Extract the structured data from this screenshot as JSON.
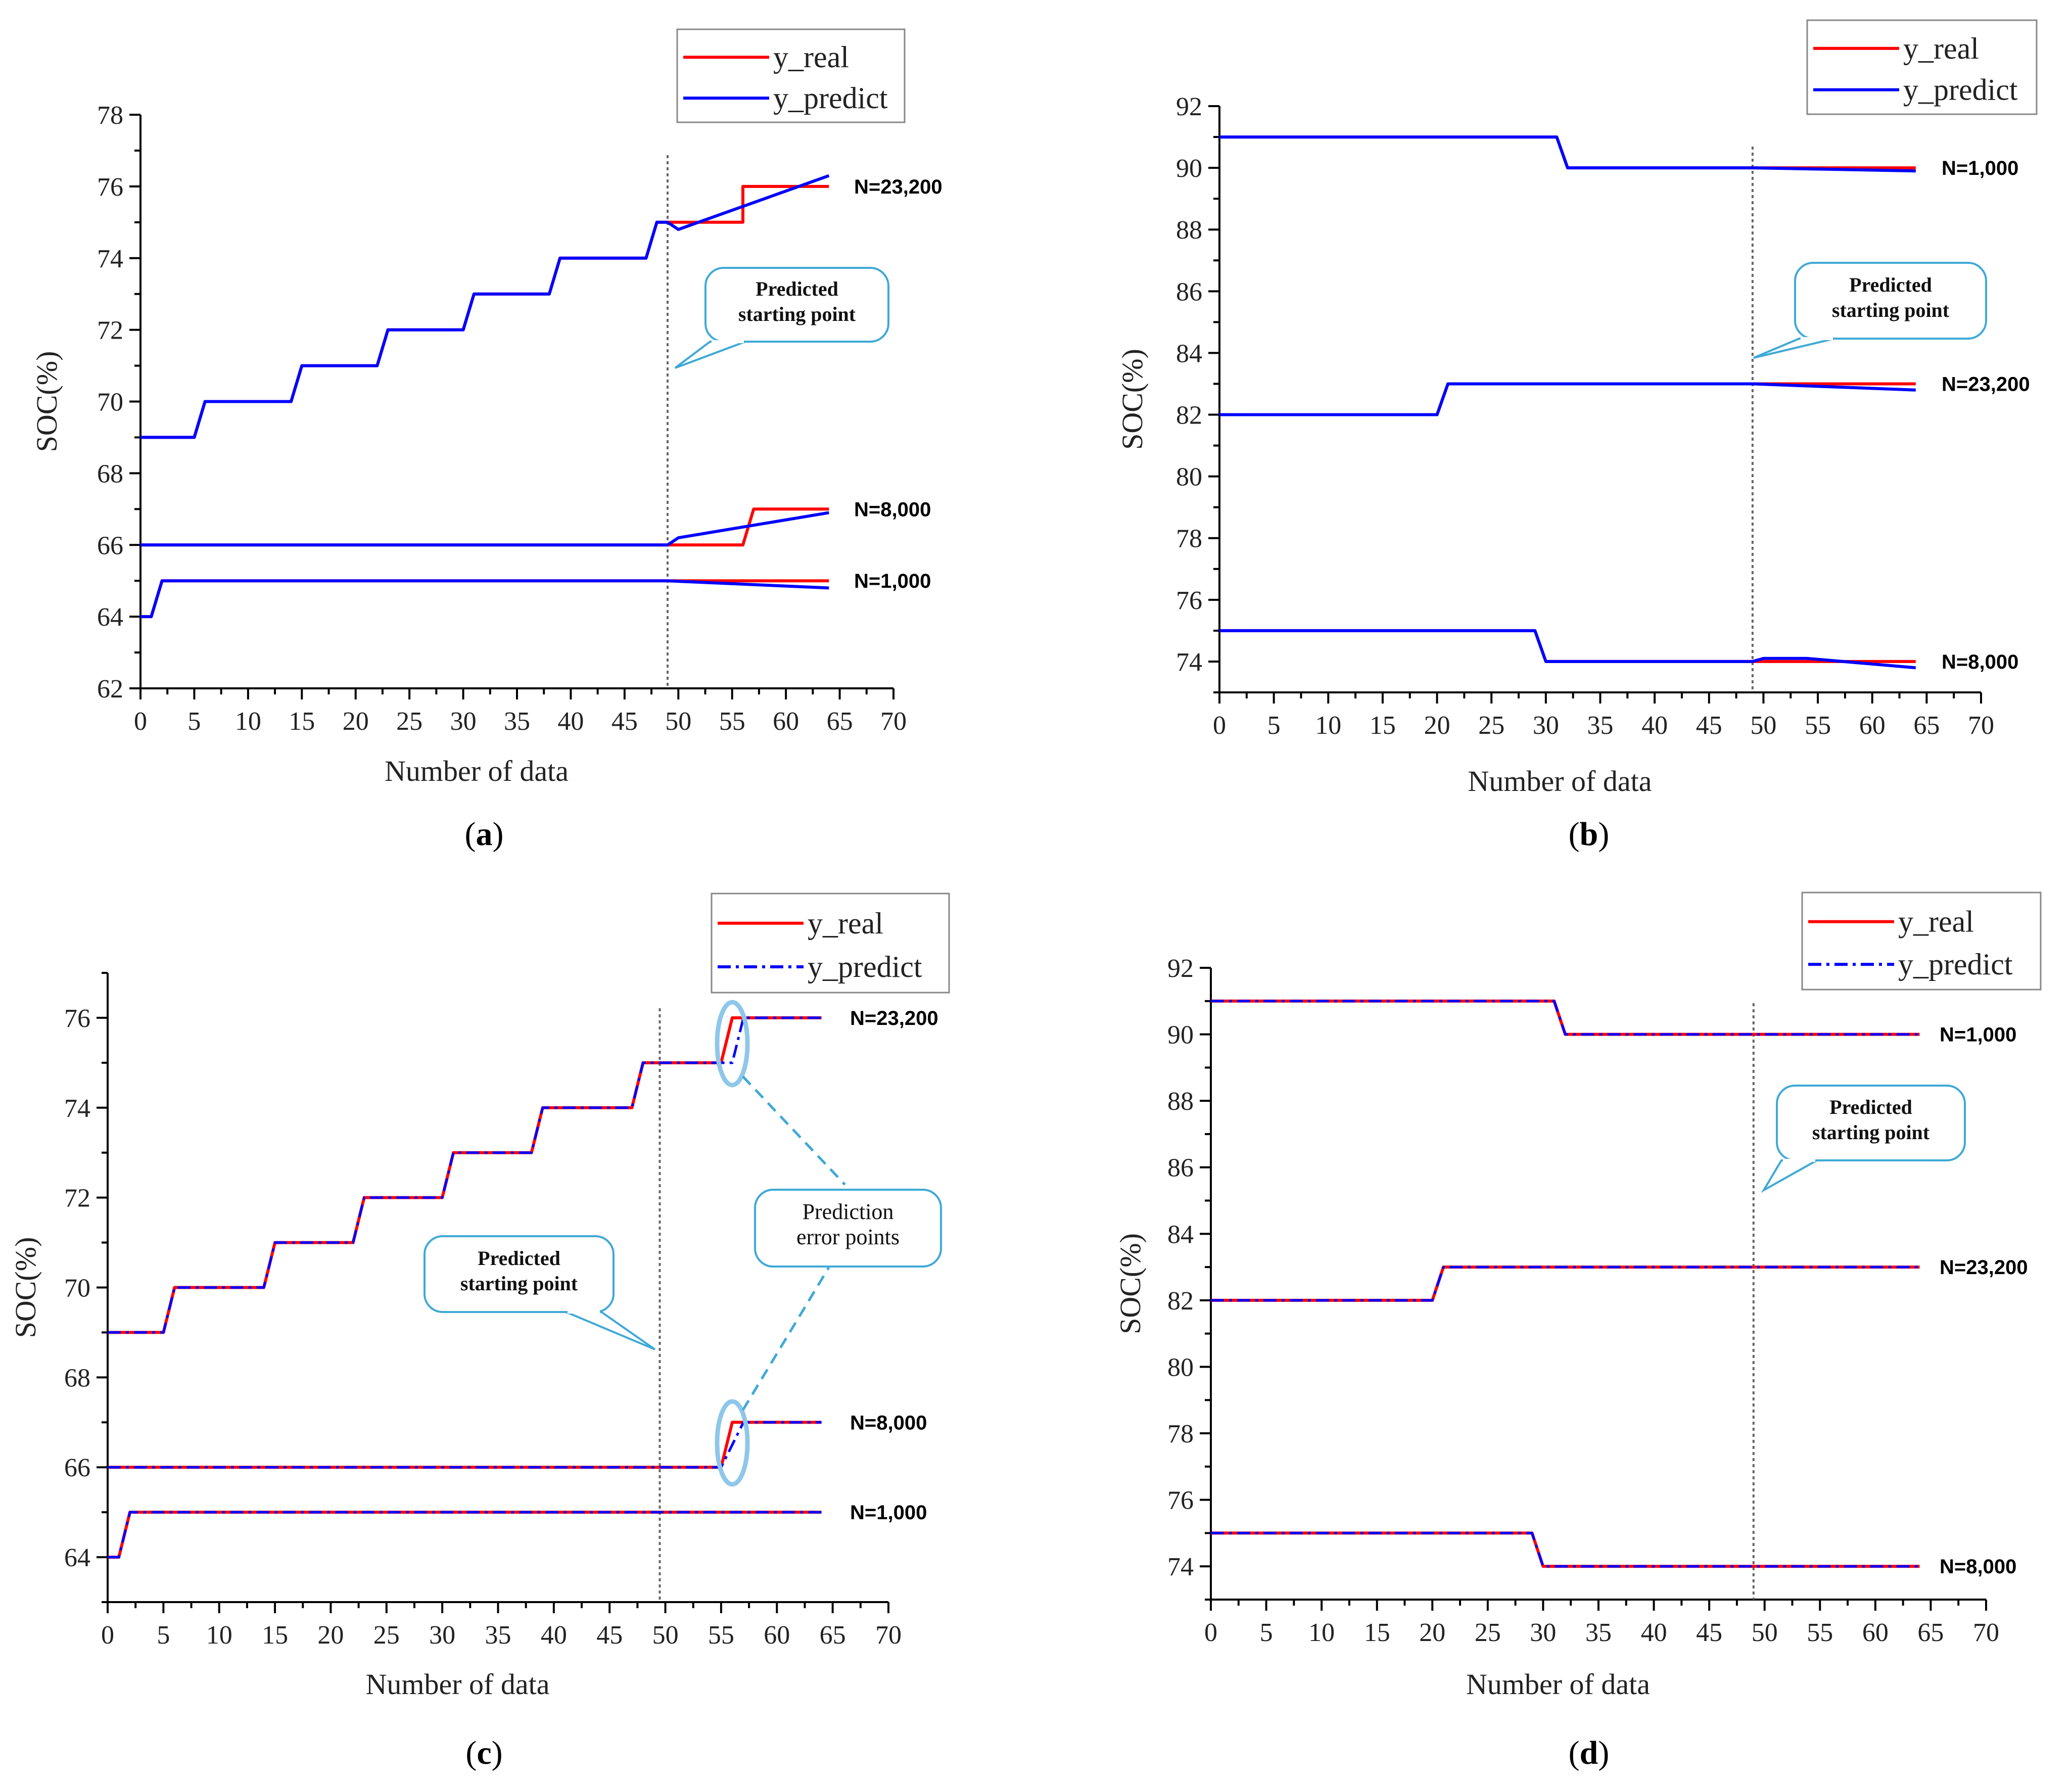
{
  "colors": {
    "real": "#ff0000",
    "predict": "#0000ff",
    "callout": "#3fa9d6"
  },
  "chart_data": [
    {
      "panel": "(a)",
      "panel_letter": "a",
      "type": "line",
      "xlabel": "Number of data",
      "ylabel": "SOC(%)",
      "xlim": [
        0,
        70
      ],
      "ylim": [
        62,
        78
      ],
      "yticks": [
        62,
        64,
        66,
        68,
        70,
        72,
        74,
        76,
        78
      ],
      "xticks": [
        0,
        5,
        10,
        15,
        20,
        25,
        30,
        35,
        40,
        45,
        50,
        55,
        60,
        65,
        70
      ],
      "predict_style": "solid",
      "legend_pos": "top-right",
      "legend": [
        "y_real",
        "y_predict"
      ],
      "start_x": 49,
      "series": [
        {
          "label": "N=23,200",
          "real": [
            [
              0,
              69
            ],
            [
              5,
              69
            ],
            [
              6,
              70
            ],
            [
              14,
              70
            ],
            [
              15,
              71
            ],
            [
              22,
              71
            ],
            [
              23,
              72
            ],
            [
              30,
              72
            ],
            [
              31,
              73
            ],
            [
              38,
              73
            ],
            [
              39,
              74
            ],
            [
              47,
              74
            ],
            [
              48,
              75
            ],
            [
              56,
              75
            ],
            [
              56,
              76
            ],
            [
              64,
              76
            ]
          ],
          "predict": [
            [
              0,
              69
            ],
            [
              5,
              69
            ],
            [
              6,
              70
            ],
            [
              14,
              70
            ],
            [
              15,
              71
            ],
            [
              22,
              71
            ],
            [
              23,
              72
            ],
            [
              30,
              72
            ],
            [
              31,
              73
            ],
            [
              38,
              73
            ],
            [
              39,
              74
            ],
            [
              47,
              74
            ],
            [
              48,
              75
            ],
            [
              49,
              75
            ],
            [
              50,
              74.8
            ],
            [
              64,
              76.3
            ]
          ]
        },
        {
          "label": "N=8,000",
          "real": [
            [
              0,
              66
            ],
            [
              49,
              66
            ],
            [
              49,
              66
            ],
            [
              56,
              66
            ],
            [
              57,
              67
            ],
            [
              64,
              67
            ]
          ],
          "predict": [
            [
              0,
              66
            ],
            [
              49,
              66
            ],
            [
              50,
              66.2
            ],
            [
              64,
              66.9
            ]
          ]
        },
        {
          "label": "N=1,000",
          "real": [
            [
              0,
              64
            ],
            [
              1,
              64
            ],
            [
              2,
              65
            ],
            [
              49,
              65
            ],
            [
              64,
              65
            ]
          ],
          "predict": [
            [
              0,
              64
            ],
            [
              1,
              64
            ],
            [
              2,
              65
            ],
            [
              49,
              65
            ],
            [
              64,
              64.8
            ]
          ]
        }
      ],
      "callouts": [
        {
          "lines": [
            "Predicted",
            "starting point"
          ]
        }
      ]
    },
    {
      "panel": "(b)",
      "panel_letter": "b",
      "type": "line",
      "xlabel": "Number of data",
      "ylabel": "SOC(%)",
      "xlim": [
        0,
        70
      ],
      "ylim": [
        73,
        92
      ],
      "yticks": [
        74,
        76,
        78,
        80,
        82,
        84,
        86,
        88,
        90,
        92
      ],
      "xticks": [
        0,
        5,
        10,
        15,
        20,
        25,
        30,
        35,
        40,
        45,
        50,
        55,
        60,
        65,
        70
      ],
      "predict_style": "solid",
      "legend_pos": "top-right",
      "legend": [
        "y_real",
        "y_predict"
      ],
      "start_x": 49,
      "series": [
        {
          "label": "N=1,000",
          "real": [
            [
              0,
              91
            ],
            [
              31,
              91
            ],
            [
              32,
              90
            ],
            [
              64,
              90
            ]
          ],
          "predict": [
            [
              0,
              91
            ],
            [
              31,
              91
            ],
            [
              32,
              90
            ],
            [
              49,
              90
            ],
            [
              64,
              89.9
            ]
          ]
        },
        {
          "label": "N=23,200",
          "real": [
            [
              0,
              82
            ],
            [
              20,
              82
            ],
            [
              21,
              83
            ],
            [
              64,
              83
            ]
          ],
          "predict": [
            [
              0,
              82
            ],
            [
              20,
              82
            ],
            [
              21,
              83
            ],
            [
              49,
              83
            ],
            [
              64,
              82.8
            ]
          ]
        },
        {
          "label": "N=8,000",
          "real": [
            [
              0,
              75
            ],
            [
              29,
              75
            ],
            [
              30,
              74
            ],
            [
              64,
              74
            ]
          ],
          "predict": [
            [
              0,
              75
            ],
            [
              29,
              75
            ],
            [
              30,
              74
            ],
            [
              49,
              74
            ],
            [
              50,
              74.1
            ],
            [
              54,
              74.1
            ],
            [
              64,
              73.8
            ]
          ]
        }
      ],
      "callouts": [
        {
          "lines": [
            "Predicted",
            "starting point"
          ]
        }
      ]
    },
    {
      "panel": "(c)",
      "panel_letter": "c",
      "type": "line",
      "xlabel": "Number of data",
      "ylabel": "SOC(%)",
      "xlim": [
        0,
        70
      ],
      "ylim": [
        63,
        77
      ],
      "yticks": [
        64,
        66,
        68,
        70,
        72,
        74,
        76
      ],
      "xticks": [
        0,
        5,
        10,
        15,
        20,
        25,
        30,
        35,
        40,
        45,
        50,
        55,
        60,
        65,
        70
      ],
      "predict_style": "dashdot",
      "legend_pos": "top-right",
      "legend": [
        "y_real",
        "y_predict"
      ],
      "start_x": 49.5,
      "series": [
        {
          "label": "N=23,200",
          "real": [
            [
              0,
              69
            ],
            [
              5,
              69
            ],
            [
              6,
              70
            ],
            [
              14,
              70
            ],
            [
              15,
              71
            ],
            [
              22,
              71
            ],
            [
              23,
              72
            ],
            [
              30,
              72
            ],
            [
              31,
              73
            ],
            [
              38,
              73
            ],
            [
              39,
              74
            ],
            [
              47,
              74
            ],
            [
              48,
              75
            ],
            [
              55,
              75
            ],
            [
              56,
              76
            ],
            [
              64,
              76
            ]
          ],
          "predict": [
            [
              0,
              69
            ],
            [
              5,
              69
            ],
            [
              6,
              70
            ],
            [
              14,
              70
            ],
            [
              15,
              71
            ],
            [
              22,
              71
            ],
            [
              23,
              72
            ],
            [
              30,
              72
            ],
            [
              31,
              73
            ],
            [
              38,
              73
            ],
            [
              39,
              74
            ],
            [
              47,
              74
            ],
            [
              48,
              75
            ],
            [
              56,
              75
            ],
            [
              57,
              76
            ],
            [
              64,
              76
            ]
          ]
        },
        {
          "label": "N=8,000",
          "real": [
            [
              0,
              66
            ],
            [
              55,
              66
            ],
            [
              56,
              67
            ],
            [
              64,
              67
            ]
          ],
          "predict": [
            [
              0,
              66
            ],
            [
              55,
              66
            ],
            [
              57,
              67
            ],
            [
              64,
              67
            ]
          ]
        },
        {
          "label": "N=1,000",
          "real": [
            [
              0,
              64
            ],
            [
              1,
              64
            ],
            [
              2,
              65
            ],
            [
              64,
              65
            ]
          ],
          "predict": [
            [
              0,
              64
            ],
            [
              1,
              64
            ],
            [
              2,
              65
            ],
            [
              64,
              65
            ]
          ]
        }
      ],
      "callouts": [
        {
          "lines": [
            "Predicted",
            "starting point"
          ]
        },
        {
          "lines": [
            "Prediction",
            "error points"
          ]
        }
      ]
    },
    {
      "panel": "(d)",
      "panel_letter": "d",
      "type": "line",
      "xlabel": "Number of data",
      "ylabel": "SOC(%)",
      "xlim": [
        0,
        70
      ],
      "ylim": [
        73,
        92
      ],
      "yticks": [
        74,
        76,
        78,
        80,
        82,
        84,
        86,
        88,
        90,
        92
      ],
      "xticks": [
        0,
        5,
        10,
        15,
        20,
        25,
        30,
        35,
        40,
        45,
        50,
        55,
        60,
        65,
        70
      ],
      "predict_style": "dashdot",
      "legend_pos": "top-right",
      "legend": [
        "y_real",
        "y_predict"
      ],
      "start_x": 49,
      "series": [
        {
          "label": "N=1,000",
          "real": [
            [
              0,
              91
            ],
            [
              31,
              91
            ],
            [
              32,
              90
            ],
            [
              64,
              90
            ]
          ],
          "predict": [
            [
              0,
              91
            ],
            [
              31,
              91
            ],
            [
              32,
              90
            ],
            [
              64,
              90
            ]
          ]
        },
        {
          "label": "N=23,200",
          "real": [
            [
              0,
              82
            ],
            [
              20,
              82
            ],
            [
              21,
              83
            ],
            [
              64,
              83
            ]
          ],
          "predict": [
            [
              0,
              82
            ],
            [
              20,
              82
            ],
            [
              21,
              83
            ],
            [
              64,
              83
            ]
          ]
        },
        {
          "label": "N=8,000",
          "real": [
            [
              0,
              75
            ],
            [
              29,
              75
            ],
            [
              30,
              74
            ],
            [
              64,
              74
            ]
          ],
          "predict": [
            [
              0,
              75
            ],
            [
              29,
              75
            ],
            [
              30,
              74
            ],
            [
              64,
              74
            ]
          ]
        }
      ],
      "callouts": [
        {
          "lines": [
            "Predicted",
            "starting point"
          ]
        }
      ]
    }
  ]
}
